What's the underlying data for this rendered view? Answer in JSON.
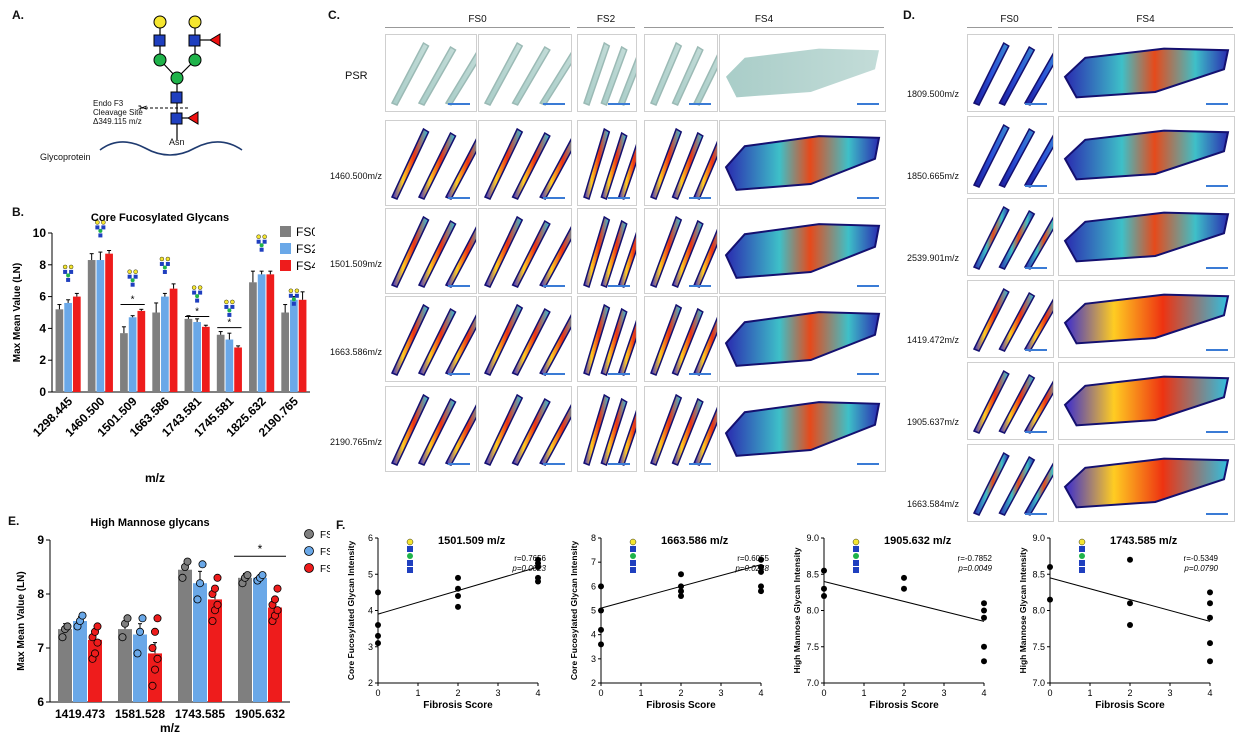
{
  "colors": {
    "fs0": "#7f7f7f",
    "fs2": "#6aa8e8",
    "fs4": "#ee1c1c",
    "glyco_blue": "#1f3fbf",
    "glyco_green": "#1fb34a",
    "glyco_yellow": "#f5e630",
    "fucose": "#e11"
  },
  "panelA": {
    "letter": "A.",
    "cleavage_label": [
      "Endo F3",
      "Cleavage Site",
      "Δ349.115 m/z"
    ],
    "asn_label": "Asn",
    "protein_label": "Glycoprotein"
  },
  "panelB": {
    "letter": "B.",
    "ylabel": "Max Mean Value (LN)",
    "xlabel": "m/z",
    "sig_marks": [
      "*",
      "*",
      "*"
    ]
  },
  "panelC": {
    "letter": "C.",
    "headers": [
      "FS0",
      "FS2",
      "FS4"
    ],
    "row_label_psr": "PSR",
    "mz_labels": [
      "1460.500m/z",
      "1501.509m/z",
      "1663.586m/z",
      "2190.765m/z"
    ]
  },
  "panelD": {
    "letter": "D.",
    "headers": [
      "FS0",
      "FS4"
    ],
    "mz_labels": [
      "1809.500m/z",
      "1850.665m/z",
      "2539.901m/z",
      "1419.472m/z",
      "1905.637m/z",
      "1663.584m/z"
    ]
  },
  "panelE": {
    "letter": "E.",
    "ylabel": "Max Mean Value (LN)",
    "xlabel": "m/z",
    "sig_marks": [
      "*"
    ]
  },
  "panelF": {
    "letter": "F.",
    "xlabel": "Fibrosis Score"
  },
  "chart_data": [
    {
      "id": "B",
      "type": "bar",
      "title": "Core Fucosylated Glycans",
      "xlabel": "m/z",
      "ylabel": "Max Mean Value (LN)",
      "ylim": [
        0,
        10
      ],
      "yticks": [
        0,
        2,
        4,
        6,
        8,
        10
      ],
      "categories": [
        "1298.445",
        "1460.500",
        "1501.509",
        "1663.586",
        "1743.581",
        "1745.581",
        "1825.632",
        "2190.765"
      ],
      "series": [
        {
          "name": "FS0",
          "values": [
            5.2,
            8.3,
            3.7,
            5.0,
            4.6,
            3.6,
            6.9,
            5.0
          ],
          "errors": [
            0.3,
            0.4,
            0.4,
            0.6,
            0.2,
            0.2,
            0.7,
            0.5
          ]
        },
        {
          "name": "FS2",
          "values": [
            5.6,
            8.3,
            4.7,
            6.0,
            4.4,
            3.3,
            7.4,
            5.8
          ],
          "errors": [
            0.2,
            0.5,
            0.1,
            0.2,
            0.2,
            0.4,
            0.2,
            0.2
          ]
        },
        {
          "name": "FS4",
          "values": [
            6.0,
            8.7,
            5.1,
            6.5,
            4.1,
            2.8,
            7.4,
            5.8
          ],
          "errors": [
            0.2,
            0.2,
            0.1,
            0.3,
            0.1,
            0.1,
            0.2,
            0.5
          ]
        }
      ],
      "legend": "top-right"
    },
    {
      "id": "E",
      "type": "bar",
      "title": "High Mannose glycans",
      "xlabel": "m/z",
      "ylabel": "Max Mean Value (LN)",
      "ylim": [
        6,
        9
      ],
      "yticks": [
        6,
        7,
        8,
        9
      ],
      "categories": [
        "1419.473",
        "1581.528",
        "1743.585",
        "1905.632"
      ],
      "series": [
        {
          "name": "FS0",
          "values": [
            7.35,
            7.35,
            8.45,
            8.3
          ],
          "errors": [
            0.1,
            0.12,
            0.1,
            0.08
          ],
          "points": [
            [
              7.2,
              7.35,
              7.4
            ],
            [
              7.2,
              7.45,
              7.55
            ],
            [
              8.3,
              8.5,
              8.6
            ],
            [
              8.2,
              8.3,
              8.35
            ]
          ]
        },
        {
          "name": "FS2",
          "values": [
            7.5,
            7.25,
            8.2,
            8.3
          ],
          "errors": [
            0.08,
            0.2,
            0.22,
            0.06
          ],
          "points": [
            [
              7.4,
              7.5,
              7.6
            ],
            [
              6.9,
              7.3,
              7.55
            ],
            [
              7.9,
              8.2,
              8.55
            ],
            [
              8.25,
              8.3,
              8.35
            ]
          ]
        },
        {
          "name": "FS4",
          "values": [
            7.15,
            6.9,
            7.9,
            7.75
          ],
          "errors": [
            0.13,
            0.2,
            0.15,
            0.12
          ],
          "points": [
            [
              6.8,
              6.9,
              7.1,
              7.2,
              7.3,
              7.4
            ],
            [
              6.3,
              6.6,
              6.8,
              7.0,
              7.3,
              7.55
            ],
            [
              7.5,
              7.7,
              7.8,
              8.0,
              8.1,
              8.3
            ],
            [
              7.5,
              7.6,
              7.7,
              7.8,
              7.9,
              8.1
            ]
          ]
        }
      ],
      "legend": "top-right"
    },
    {
      "id": "F1",
      "type": "scatter",
      "title": "1501.509 m/z",
      "xlabel": "Fibrosis Score",
      "ylabel": "Core Fucosylated Glycan Intensity",
      "xlim": [
        0,
        4
      ],
      "ylim": [
        2,
        6
      ],
      "yticks": [
        2,
        3,
        4,
        5,
        6
      ],
      "xticks": [
        0,
        1,
        2,
        3,
        4
      ],
      "annotation": [
        "r=0.7656",
        "p=0.0023"
      ],
      "points": [
        [
          0,
          4.5
        ],
        [
          0,
          3.6
        ],
        [
          0,
          3.3
        ],
        [
          0,
          3.1
        ],
        [
          2,
          4.9
        ],
        [
          2,
          4.6
        ],
        [
          2,
          4.4
        ],
        [
          2,
          4.1
        ],
        [
          4,
          5.4
        ],
        [
          4,
          5.3
        ],
        [
          4,
          5.2
        ],
        [
          4,
          4.9
        ],
        [
          4,
          4.8
        ]
      ],
      "fit": [
        [
          0,
          3.9
        ],
        [
          4,
          5.2
        ]
      ]
    },
    {
      "id": "F2",
      "type": "scatter",
      "title": "1663.586 m/z",
      "xlabel": "Fibrosis Score",
      "ylabel": "Core Fucosylated Glycan Intensity",
      "xlim": [
        0,
        4
      ],
      "ylim": [
        2,
        8
      ],
      "yticks": [
        2,
        3,
        4,
        5,
        6,
        7,
        8
      ],
      "xticks": [
        0,
        1,
        2,
        3,
        4
      ],
      "annotation": [
        "r=0.6055",
        "p=0.0248"
      ],
      "points": [
        [
          0,
          6.0
        ],
        [
          0,
          5.0
        ],
        [
          0,
          4.2
        ],
        [
          0,
          3.6
        ],
        [
          2,
          6.5
        ],
        [
          2,
          6.0
        ],
        [
          2,
          5.8
        ],
        [
          2,
          5.6
        ],
        [
          4,
          7.1
        ],
        [
          4,
          6.8
        ],
        [
          4,
          6.6
        ],
        [
          4,
          6.0
        ],
        [
          4,
          5.8
        ]
      ],
      "fit": [
        [
          0,
          5.1
        ],
        [
          4,
          6.9
        ]
      ]
    },
    {
      "id": "F3",
      "type": "scatter",
      "title": "1905.632 m/z",
      "xlabel": "Fibrosis Score",
      "ylabel": "High Mannose Glycan Intensity",
      "xlim": [
        0,
        4
      ],
      "ylim": [
        7.0,
        9.0
      ],
      "yticks": [
        7.0,
        7.5,
        8.0,
        8.5,
        9.0
      ],
      "xticks": [
        0,
        1,
        2,
        3,
        4
      ],
      "annotation": [
        "r=-0.7852",
        "p=0.0049"
      ],
      "points": [
        [
          0,
          8.55
        ],
        [
          0,
          8.3
        ],
        [
          0,
          8.2
        ],
        [
          2,
          8.45
        ],
        [
          2,
          8.3
        ],
        [
          4,
          8.1
        ],
        [
          4,
          8.0
        ],
        [
          4,
          7.9
        ],
        [
          4,
          7.5
        ],
        [
          4,
          7.3
        ]
      ],
      "fit": [
        [
          0,
          8.4
        ],
        [
          4,
          7.85
        ]
      ]
    },
    {
      "id": "F4",
      "type": "scatter",
      "title": "1743.585 m/z",
      "xlabel": "Fibrosis Score",
      "ylabel": "High Mannose Glycan Intensity",
      "xlim": [
        0,
        4
      ],
      "ylim": [
        7.0,
        9.0
      ],
      "yticks": [
        7.0,
        7.5,
        8.0,
        8.5,
        9.0
      ],
      "xticks": [
        0,
        1,
        2,
        3,
        4
      ],
      "annotation": [
        "r=-0.5349",
        "p=0.0790"
      ],
      "points": [
        [
          0,
          8.6
        ],
        [
          0,
          8.15
        ],
        [
          2,
          8.7
        ],
        [
          2,
          8.1
        ],
        [
          2,
          7.8
        ],
        [
          4,
          8.25
        ],
        [
          4,
          8.1
        ],
        [
          4,
          7.9
        ],
        [
          4,
          7.55
        ],
        [
          4,
          7.3
        ]
      ],
      "fit": [
        [
          0,
          8.45
        ],
        [
          4,
          7.85
        ]
      ]
    }
  ]
}
